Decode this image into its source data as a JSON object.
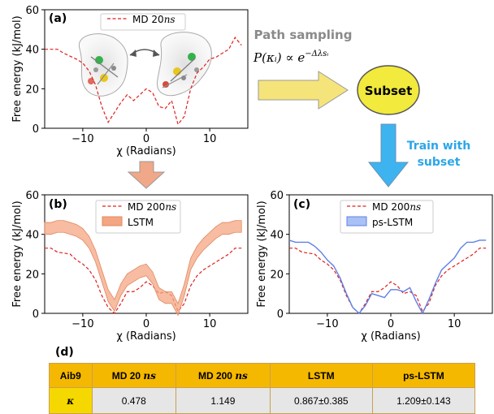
{
  "charts": [
    {
      "id": "a",
      "panel_label": "(a)",
      "ylabel": "Free energy (kJ/mol)",
      "xlabel": "χ (Radians)",
      "xticks": [
        "−10",
        "0",
        "10"
      ],
      "yticks": [
        "0",
        "20",
        "40",
        "60"
      ],
      "legend": [
        {
          "label": "MD 20",
          "label_unit": "ns",
          "style": "dashed",
          "color": "#e0201c"
        }
      ]
    },
    {
      "id": "b",
      "panel_label": "(b)",
      "ylabel": "Free energy (kJ/mol)",
      "xlabel": "χ (Radians)",
      "xticks": [
        "−10",
        "0",
        "10"
      ],
      "yticks": [
        "0",
        "20",
        "40",
        "60"
      ],
      "legend": [
        {
          "label": "MD 200",
          "label_unit": "ns",
          "style": "dashed",
          "color": "#e0201c"
        },
        {
          "label": "LSTM",
          "label_unit": "",
          "style": "band",
          "color": "#f4a582"
        }
      ]
    },
    {
      "id": "c",
      "panel_label": "(c)",
      "ylabel": "Free energy (kJ/mol)",
      "xlabel": "χ (Radians)",
      "xticks": [
        "−10",
        "0",
        "10"
      ],
      "yticks": [
        "0",
        "20",
        "40",
        "60"
      ],
      "legend": [
        {
          "label": "MD 200",
          "label_unit": "ns",
          "style": "dashed",
          "color": "#e0201c"
        },
        {
          "label": "ps-LSTM",
          "label_unit": "",
          "style": "line",
          "color": "#5f7fe8"
        }
      ]
    }
  ],
  "chart_data": [
    {
      "type": "line",
      "panel": "a",
      "xlim": [
        -16,
        16
      ],
      "ylim": [
        0,
        60
      ],
      "series": [
        {
          "name": "MD 20ns",
          "x": [
            -16,
            -14,
            -13,
            -11,
            -10,
            -9,
            -8,
            -7,
            -6,
            -5,
            -4,
            -3,
            -2,
            -1,
            0,
            1,
            2,
            3,
            4,
            5,
            6,
            7,
            8,
            9,
            10,
            11,
            12,
            13,
            14,
            15
          ],
          "y": [
            40,
            40,
            38,
            35,
            33,
            29,
            22,
            11,
            3,
            8,
            13,
            17,
            14,
            17,
            20,
            18,
            11,
            10,
            14,
            2,
            6,
            20,
            28,
            31,
            35,
            36,
            38,
            40,
            46,
            42
          ]
        }
      ]
    },
    {
      "type": "line",
      "panel": "b",
      "xlim": [
        -16,
        16
      ],
      "ylim": [
        0,
        60
      ],
      "series": [
        {
          "name": "MD 200ns",
          "x": [
            -16,
            -15,
            -14,
            -12,
            -11,
            -10,
            -9,
            -8,
            -7,
            -6,
            -5,
            -4,
            -3,
            -2,
            -1,
            0,
            1,
            2,
            3,
            4,
            5,
            6,
            7,
            8,
            9,
            10,
            11,
            12,
            13,
            14,
            15
          ],
          "y": [
            33,
            33,
            31,
            30,
            27,
            25,
            22,
            17,
            9,
            3,
            0,
            5,
            11,
            11,
            13,
            16,
            14,
            10,
            11,
            9,
            1,
            5,
            14,
            19,
            22,
            24,
            26,
            28,
            30,
            33,
            33
          ]
        },
        {
          "name": "LSTM",
          "x": [
            -16,
            -15,
            -14,
            -13,
            -12,
            -11,
            -10,
            -9,
            -8,
            -7,
            -6,
            -5,
            -4,
            -3,
            -2,
            -1,
            0,
            1,
            2,
            3,
            4,
            5,
            6,
            7,
            8,
            9,
            10,
            11,
            12,
            13,
            14,
            15
          ],
          "y": [
            43,
            43,
            44,
            44,
            43,
            42,
            40,
            36,
            29,
            19,
            9,
            4,
            12,
            17,
            19,
            21,
            22,
            18,
            10,
            8,
            8,
            2,
            12,
            25,
            31,
            35,
            38,
            41,
            43,
            43,
            44,
            44
          ],
          "band": 1.5
        }
      ]
    },
    {
      "type": "line",
      "panel": "c",
      "xlim": [
        -16,
        16
      ],
      "ylim": [
        0,
        60
      ],
      "series": [
        {
          "name": "MD 200ns",
          "x": [
            -16,
            -15,
            -14,
            -12,
            -11,
            -10,
            -9,
            -8,
            -7,
            -6,
            -5,
            -4,
            -3,
            -2,
            -1,
            0,
            1,
            2,
            3,
            4,
            5,
            6,
            7,
            8,
            9,
            10,
            11,
            12,
            13,
            14,
            15
          ],
          "y": [
            33,
            33,
            31,
            30,
            27,
            25,
            22,
            17,
            9,
            3,
            0,
            5,
            11,
            11,
            13,
            16,
            14,
            10,
            11,
            9,
            1,
            5,
            14,
            19,
            22,
            24,
            26,
            28,
            30,
            33,
            33
          ]
        },
        {
          "name": "ps-LSTM",
          "x": [
            -16,
            -15,
            -14,
            -13,
            -12,
            -11,
            -10,
            -9,
            -8,
            -7,
            -6,
            -5,
            -4,
            -3,
            -2,
            -1,
            0,
            1,
            2,
            3,
            4,
            5,
            6,
            7,
            8,
            9,
            10,
            11,
            12,
            13,
            14,
            15
          ],
          "y": [
            37,
            36,
            36,
            36,
            34,
            31,
            27,
            24,
            18,
            10,
            3,
            0,
            4,
            10,
            9,
            8,
            12,
            12,
            11,
            13,
            6,
            0,
            7,
            15,
            22,
            25,
            28,
            33,
            36,
            36,
            37,
            37
          ]
        }
      ]
    }
  ],
  "flow": {
    "path_sampling_label": "Path sampling",
    "formula": "P(κᵢ) ∝ e",
    "formula_exp": "−Δλsᵢ",
    "subset_label": "Subset",
    "train_label_line1": "Train with",
    "train_label_line2": "subset",
    "colors": {
      "yellow": "#f2ea3c",
      "yellow_arrow": "#f5e47a",
      "orange_arrow": "#f0a888",
      "blue_arrow": "#3db4f0",
      "blue_text": "#2aa6e8"
    }
  },
  "table": {
    "title": "(d)",
    "headers": [
      {
        "text": "Aib9",
        "unit": ""
      },
      {
        "text": "MD 20",
        "unit": "ns"
      },
      {
        "text": "MD 200",
        "unit": "ns"
      },
      {
        "text": "LSTM",
        "unit": ""
      },
      {
        "text": "ps-LSTM",
        "unit": ""
      }
    ],
    "row": {
      "label": "κ",
      "values": [
        "0.478",
        "1.149",
        "0.867±0.385",
        "1.209±0.143"
      ]
    }
  }
}
